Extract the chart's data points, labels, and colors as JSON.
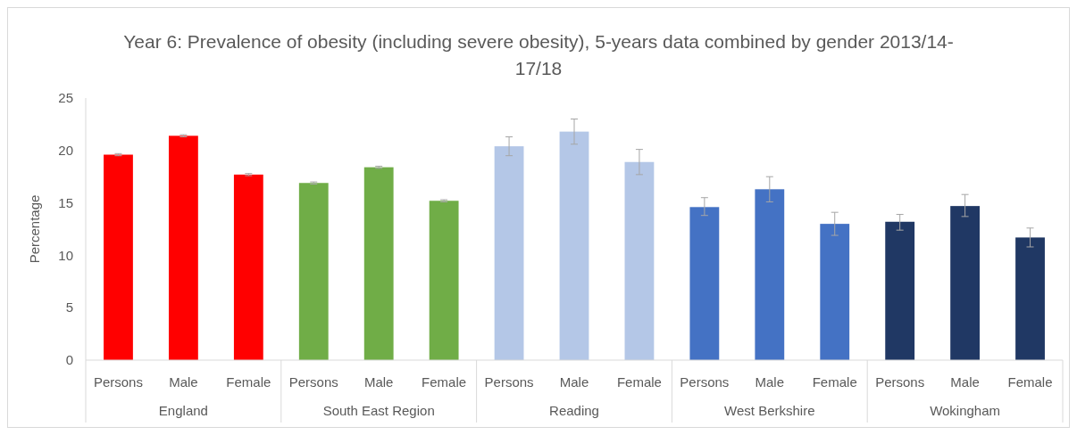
{
  "chart_data": {
    "type": "bar",
    "title": "Year 6: Prevalence of obesity (including severe obesity), 5-years data combined by gender 2013/14-17/18",
    "ylabel": "Percentage",
    "categories": [
      "Persons",
      "Male",
      "Female",
      "Persons",
      "Male",
      "Female",
      "Persons",
      "Male",
      "Female",
      "Persons",
      "Male",
      "Female",
      "Persons",
      "Male",
      "Female"
    ],
    "values": [
      19.6,
      21.4,
      17.7,
      16.9,
      18.4,
      15.2,
      20.4,
      21.8,
      18.9,
      14.6,
      16.3,
      13.0,
      13.2,
      14.7,
      11.7
    ],
    "colors": [
      "#ff0000",
      "#ff0000",
      "#ff0000",
      "#70ad47",
      "#70ad47",
      "#70ad47",
      "#b4c7e7",
      "#b4c7e7",
      "#b4c7e7",
      "#4472c4",
      "#4472c4",
      "#4472c4",
      "#203864",
      "#203864",
      "#203864"
    ],
    "errors": [
      0.1,
      0.1,
      0.1,
      0.1,
      0.1,
      0.1,
      [
        19.5,
        21.3
      ],
      [
        20.6,
        23.0
      ],
      [
        17.7,
        20.1
      ],
      [
        13.8,
        15.5
      ],
      [
        15.1,
        17.5
      ],
      [
        11.9,
        14.1
      ],
      [
        12.4,
        13.9
      ],
      [
        13.7,
        15.8
      ],
      [
        10.8,
        12.6
      ]
    ],
    "annotations": [
      "England",
      "South East Region",
      "Reading",
      "West Berkshire",
      "Wokingham"
    ],
    "ylim": [
      0,
      25
    ],
    "yticks": [
      0,
      5,
      10,
      15,
      20,
      25
    ],
    "grid": false
  }
}
